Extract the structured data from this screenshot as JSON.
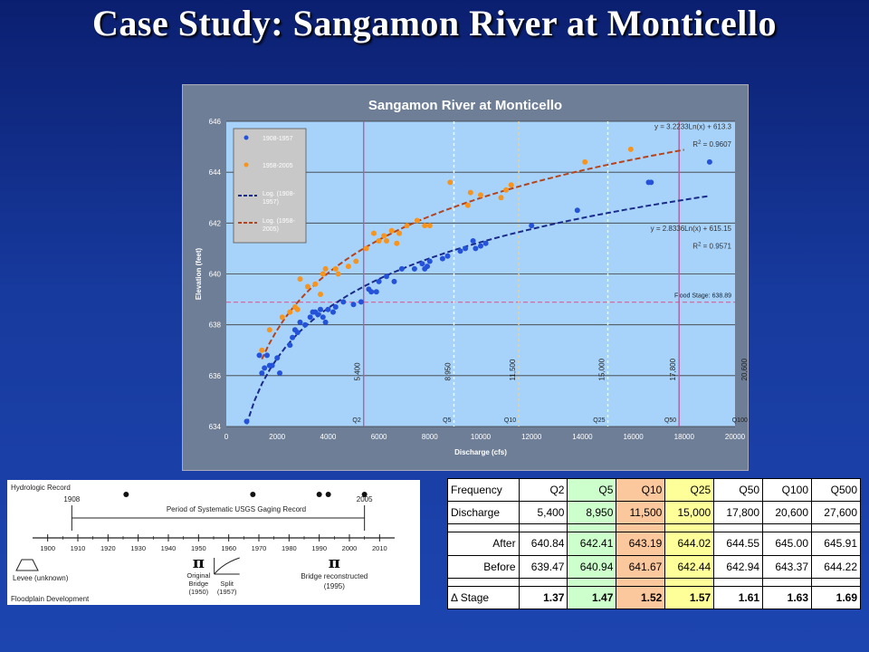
{
  "slide": {
    "title": "Case Study: Sangamon River at Monticello"
  },
  "colors": {
    "series_early": "#2452d8",
    "series_late": "#f6941e",
    "trend_early": "#1a2a8a",
    "trend_late": "#b5431c",
    "flood": "#cc6699",
    "plot_bg": "#a7d3fb"
  },
  "chart_data": {
    "type": "scatter",
    "title": "Sangamon River at Monticello",
    "xlabel": "Discharge (cfs)",
    "ylabel": "Elevation (feet)",
    "xlim": [
      0,
      20000
    ],
    "ylim": [
      634,
      646
    ],
    "x_ticks": [
      "0",
      "2000",
      "4000",
      "6000",
      "8000",
      "10000",
      "12000",
      "14000",
      "16000",
      "18000",
      "20000"
    ],
    "y_ticks": [
      "634",
      "636",
      "638",
      "640",
      "642",
      "644",
      "646"
    ],
    "legend_position": "left",
    "legend": [
      "1908-1957",
      "1958-2005",
      "Log. (1908-1957)",
      "Log. (1958-2005)"
    ],
    "series": [
      {
        "name": "1908-1957",
        "kind": "points",
        "color": "#2452d8",
        "points": [
          [
            800,
            634.2
          ],
          [
            1300,
            636.8
          ],
          [
            1400,
            636.1
          ],
          [
            1500,
            636.3
          ],
          [
            1600,
            636.8
          ],
          [
            1700,
            636.4
          ],
          [
            1800,
            636.4
          ],
          [
            2000,
            636.7
          ],
          [
            2100,
            636.1
          ],
          [
            2500,
            637.2
          ],
          [
            2600,
            637.5
          ],
          [
            2700,
            637.8
          ],
          [
            2800,
            637.7
          ],
          [
            2900,
            638.1
          ],
          [
            3100,
            638.0
          ],
          [
            3300,
            638.3
          ],
          [
            3400,
            638.5
          ],
          [
            3500,
            638.5
          ],
          [
            3600,
            638.4
          ],
          [
            3700,
            638.6
          ],
          [
            3800,
            638.3
          ],
          [
            3900,
            638.1
          ],
          [
            4000,
            638.6
          ],
          [
            4200,
            638.5
          ],
          [
            4300,
            638.7
          ],
          [
            4600,
            638.9
          ],
          [
            5000,
            638.8
          ],
          [
            5300,
            638.9
          ],
          [
            5600,
            639.4
          ],
          [
            5700,
            639.3
          ],
          [
            5900,
            639.3
          ],
          [
            6000,
            639.7
          ],
          [
            6300,
            639.9
          ],
          [
            6600,
            639.7
          ],
          [
            6900,
            640.2
          ],
          [
            7400,
            640.2
          ],
          [
            7700,
            640.4
          ],
          [
            7800,
            640.2
          ],
          [
            7900,
            640.3
          ],
          [
            8000,
            640.5
          ],
          [
            8500,
            640.6
          ],
          [
            8700,
            640.7
          ],
          [
            9200,
            640.9
          ],
          [
            9400,
            641.0
          ],
          [
            9700,
            641.3
          ],
          [
            9800,
            641.0
          ],
          [
            10000,
            641.1
          ],
          [
            10200,
            641.2
          ],
          [
            12000,
            641.9
          ],
          [
            13800,
            642.5
          ],
          [
            16600,
            643.6
          ],
          [
            16700,
            643.6
          ],
          [
            19000,
            644.4
          ]
        ]
      },
      {
        "name": "1958-2005",
        "kind": "points",
        "color": "#f6941e",
        "points": [
          [
            1400,
            637.0
          ],
          [
            1700,
            637.8
          ],
          [
            2200,
            638.3
          ],
          [
            2500,
            638.5
          ],
          [
            2700,
            638.7
          ],
          [
            2800,
            638.6
          ],
          [
            2900,
            639.8
          ],
          [
            3200,
            639.5
          ],
          [
            3500,
            639.6
          ],
          [
            3700,
            639.2
          ],
          [
            3800,
            640.0
          ],
          [
            3900,
            640.2
          ],
          [
            4300,
            640.2
          ],
          [
            4400,
            640.0
          ],
          [
            4800,
            640.3
          ],
          [
            5100,
            640.5
          ],
          [
            5500,
            641.0
          ],
          [
            5800,
            641.6
          ],
          [
            6000,
            641.3
          ],
          [
            6200,
            641.5
          ],
          [
            6300,
            641.3
          ],
          [
            6500,
            641.7
          ],
          [
            6700,
            641.2
          ],
          [
            6800,
            641.6
          ],
          [
            7100,
            641.9
          ],
          [
            7500,
            642.1
          ],
          [
            7800,
            641.9
          ],
          [
            8000,
            641.9
          ],
          [
            8800,
            643.6
          ],
          [
            9500,
            642.7
          ],
          [
            9600,
            643.2
          ],
          [
            10000,
            643.1
          ],
          [
            10800,
            643.0
          ],
          [
            11000,
            643.3
          ],
          [
            11200,
            643.5
          ],
          [
            14100,
            644.4
          ],
          [
            15900,
            644.9
          ]
        ]
      },
      {
        "name": "Log. (1908-1957)",
        "kind": "trend",
        "color": "#1a2a8a",
        "a": 2.8336,
        "b": 615.15,
        "x_range": [
          800,
          19000
        ]
      },
      {
        "name": "Log. (1958-2005)",
        "kind": "trend",
        "color": "#b5431c",
        "a": 3.2233,
        "b": 613.3,
        "x_range": [
          1400,
          18000
        ]
      }
    ],
    "equations": {
      "late_eq": "y = 3.2233Ln(x) + 613.3",
      "late_r2": "R",
      "late_r2_val": " = 0.9607",
      "early_eq": "y = 2.8336Ln(x) + 615.15",
      "early_r2": "R",
      "early_r2_val": " = 0.9571",
      "sup": "2"
    },
    "flood_stage": {
      "value": 638.89,
      "label": "Flood Stage: 638.89"
    },
    "return_periods": [
      {
        "x": 5400,
        "label": "5,400",
        "code": "Q2",
        "color": "#b05fa0",
        "dash": "none"
      },
      {
        "x": 8950,
        "label": "8,950",
        "code": "Q5",
        "color": "#ffffff",
        "dash": "3,3"
      },
      {
        "x": 11500,
        "label": "11,500",
        "code": "Q10",
        "color": "#f6cf80",
        "dash": "3,3"
      },
      {
        "x": 15000,
        "label": "15,000",
        "code": "Q25",
        "color": "#ffffa0",
        "dash": "3,3"
      },
      {
        "x": 17800,
        "label": "17,800",
        "code": "Q50",
        "color": "#b05fa0",
        "dash": "none"
      },
      {
        "x": 20600,
        "label": "20,600",
        "code": "Q100",
        "color": "#b05fa0",
        "dash": "none"
      }
    ]
  },
  "timeline": {
    "hydrologic_record": "Hydrologic Record",
    "start_year": "1908",
    "end_year": "2005",
    "gaging_label": "Period of Systematic USGS Gaging Record",
    "axis_years": [
      "1900",
      "1910",
      "1920",
      "1930",
      "1940",
      "1950",
      "1960",
      "1970",
      "1980",
      "1990",
      "2000",
      "2010"
    ],
    "flood_years": [
      1926,
      1968,
      1990,
      1993,
      2005
    ],
    "levee_label": "Levee (unknown)",
    "bridge_label_1": "Original",
    "bridge_label_2": "Bridge",
    "bridge_year": "(1950)",
    "split_label": "Split",
    "split_year": "(1957)",
    "reconstructed_label": "Bridge reconstructed",
    "reconstructed_year": "(1995)",
    "floodplain_label": "Floodplain Development"
  },
  "table": {
    "header": [
      "Frequency",
      "Q2",
      "Q5",
      "Q10",
      "Q25",
      "Q50",
      "Q100",
      "Q500"
    ],
    "discharge": [
      "Discharge",
      "5,400",
      "8,950",
      "11,500",
      "15,000",
      "17,800",
      "20,600",
      "27,600"
    ],
    "after": [
      "After",
      "640.84",
      "642.41",
      "643.19",
      "644.02",
      "644.55",
      "645.00",
      "645.91"
    ],
    "before": [
      "Before",
      "639.47",
      "640.94",
      "641.67",
      "642.44",
      "642.94",
      "643.37",
      "644.22"
    ],
    "stage": [
      "Δ Stage",
      "1.37",
      "1.47",
      "1.52",
      "1.57",
      "1.61",
      "1.63",
      "1.69"
    ],
    "column_colors": [
      "#ffffff",
      "#ffffff",
      "#ccffcc",
      "#fbc79c",
      "#ffff99",
      "#ffffff",
      "#ffffff",
      "#ffffff"
    ]
  }
}
